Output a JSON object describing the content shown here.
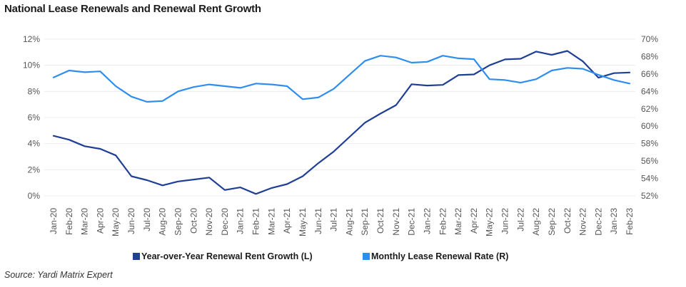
{
  "chart_data": {
    "type": "line",
    "title": "National Lease Renewals and Renewal Rent Growth",
    "source": "Source: Yardi Matrix Expert",
    "categories": [
      "Jan-20",
      "Feb-20",
      "Mar-20",
      "Apr-20",
      "May-20",
      "Jun-20",
      "Jul-20",
      "Aug-20",
      "Sep-20",
      "Oct-20",
      "Nov-20",
      "Dec-20",
      "Jan-21",
      "Feb-21",
      "Mar-21",
      "Apr-21",
      "May-21",
      "Jun-21",
      "Jul-21",
      "Aug-21",
      "Sep-21",
      "Oct-21",
      "Nov-21",
      "Dec-21",
      "Jan-22",
      "Feb-22",
      "Mar-22",
      "Apr-22",
      "May-22",
      "Jun-22",
      "Jul-22",
      "Aug-22",
      "Sep-22",
      "Oct-22",
      "Nov-22",
      "Dec-22",
      "Jan-23",
      "Feb-23"
    ],
    "left_axis": {
      "ticks": [
        "0%",
        "2%",
        "4%",
        "6%",
        "8%",
        "10%",
        "12%"
      ],
      "ylim": [
        0,
        12
      ]
    },
    "right_axis": {
      "ticks": [
        "52%",
        "54%",
        "56%",
        "58%",
        "60%",
        "62%",
        "64%",
        "66%",
        "68%",
        "70%"
      ],
      "ylim": [
        52,
        70
      ]
    },
    "series": [
      {
        "name": "Year-over-Year Renewal Rent Growth (L)",
        "axis": "left",
        "color": "#1f3f94",
        "values": [
          4.6,
          4.3,
          3.8,
          3.6,
          3.1,
          1.5,
          1.2,
          0.8,
          1.1,
          1.25,
          1.4,
          0.45,
          0.65,
          0.15,
          0.6,
          0.9,
          1.5,
          2.5,
          3.4,
          4.5,
          5.6,
          6.3,
          6.95,
          8.55,
          8.45,
          8.5,
          9.25,
          9.3,
          10.0,
          10.45,
          10.5,
          11.05,
          10.8,
          11.1,
          10.3,
          9.05,
          9.4,
          9.45
        ]
      },
      {
        "name": "Monthly Lease Renewal Rate (R)",
        "axis": "right",
        "color": "#2f8ded",
        "values": [
          65.6,
          66.4,
          66.2,
          66.3,
          64.6,
          63.4,
          62.8,
          62.9,
          64.0,
          64.5,
          64.8,
          64.6,
          64.4,
          64.9,
          64.8,
          64.6,
          63.1,
          63.3,
          64.3,
          65.9,
          67.5,
          68.1,
          67.9,
          67.3,
          67.4,
          68.1,
          67.8,
          67.7,
          65.4,
          65.3,
          65.0,
          65.4,
          66.4,
          66.7,
          66.6,
          65.9,
          65.3,
          64.9
        ]
      }
    ]
  }
}
